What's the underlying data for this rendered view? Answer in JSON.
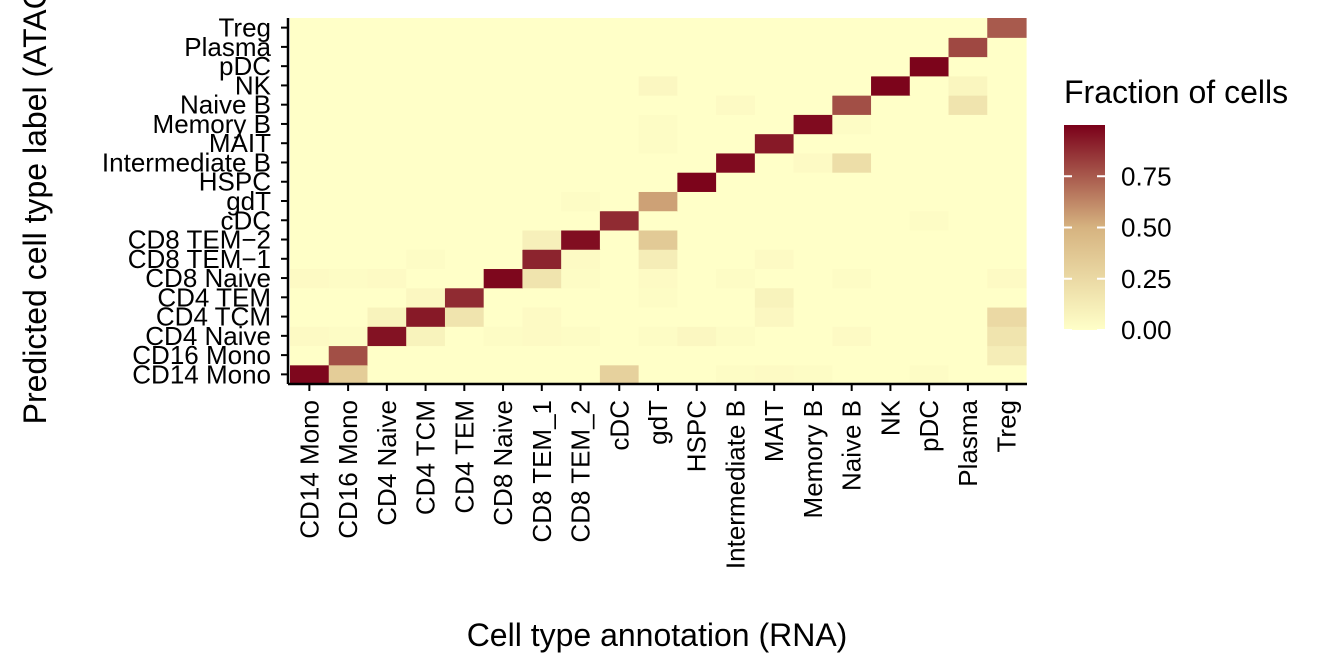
{
  "chart_data": {
    "type": "heatmap",
    "xlabel": "Cell type annotation (RNA)",
    "ylabel": "Predicted cell type label (ATAC)",
    "x_categories": [
      "CD14 Mono",
      "CD16 Mono",
      "CD4 Naive",
      "CD4 TCM",
      "CD4 TEM",
      "CD8 Naive",
      "CD8 TEM_1",
      "CD8 TEM_2",
      "cDC",
      "gdT",
      "HSPC",
      "Intermediate B",
      "MAIT",
      "Memory B",
      "Naive B",
      "NK",
      "pDC",
      "Plasma",
      "Treg"
    ],
    "y_categories": [
      "CD14 Mono",
      "CD16 Mono",
      "CD4 Naive",
      "CD4 TCM",
      "CD4 TEM",
      "CD8 Naive",
      "CD8 TEM−1",
      "CD8 TEM−2",
      "cDC",
      "gdT",
      "HSPC",
      "Intermediate B",
      "MAIT",
      "Memory B",
      "Naive B",
      "NK",
      "pDC",
      "Plasma",
      "Treg"
    ],
    "values": [
      [
        0.98,
        0.33,
        0.0,
        0.0,
        0.0,
        0.0,
        0.0,
        0.0,
        0.3,
        0.0,
        0.0,
        0.02,
        0.03,
        0.02,
        0.0,
        0.0,
        0.02,
        0.0,
        0.0
      ],
      [
        0.0,
        0.78,
        0.0,
        0.0,
        0.0,
        0.0,
        0.0,
        0.0,
        0.0,
        0.0,
        0.0,
        0.0,
        0.0,
        0.0,
        0.0,
        0.0,
        0.0,
        0.0,
        0.12
      ],
      [
        0.03,
        0.02,
        0.95,
        0.08,
        0.0,
        0.02,
        0.03,
        0.02,
        0.0,
        0.02,
        0.05,
        0.02,
        0.0,
        0.0,
        0.03,
        0.0,
        0.0,
        0.0,
        0.18
      ],
      [
        0.0,
        0.0,
        0.08,
        0.93,
        0.18,
        0.0,
        0.03,
        0.0,
        0.0,
        0.0,
        0.0,
        0.0,
        0.05,
        0.0,
        0.0,
        0.0,
        0.0,
        0.0,
        0.25
      ],
      [
        0.0,
        0.0,
        0.0,
        0.05,
        0.88,
        0.0,
        0.0,
        0.0,
        0.0,
        0.02,
        0.0,
        0.0,
        0.08,
        0.0,
        0.0,
        0.0,
        0.0,
        0.0,
        0.0
      ],
      [
        0.03,
        0.02,
        0.03,
        0.0,
        0.0,
        0.98,
        0.18,
        0.02,
        0.0,
        0.03,
        0.0,
        0.02,
        0.0,
        0.0,
        0.02,
        0.0,
        0.0,
        0.0,
        0.03
      ],
      [
        0.0,
        0.0,
        0.0,
        0.02,
        0.0,
        0.0,
        0.9,
        0.03,
        0.0,
        0.12,
        0.0,
        0.0,
        0.03,
        0.0,
        0.0,
        0.0,
        0.0,
        0.0,
        0.0
      ],
      [
        0.0,
        0.0,
        0.0,
        0.0,
        0.0,
        0.0,
        0.1,
        0.96,
        0.0,
        0.35,
        0.0,
        0.0,
        0.0,
        0.0,
        0.0,
        0.0,
        0.0,
        0.0,
        0.0
      ],
      [
        0.0,
        0.0,
        0.0,
        0.0,
        0.0,
        0.0,
        0.0,
        0.0,
        0.88,
        0.0,
        0.0,
        0.0,
        0.0,
        0.0,
        0.0,
        0.0,
        0.02,
        0.0,
        0.0
      ],
      [
        0.0,
        0.0,
        0.0,
        0.0,
        0.0,
        0.0,
        0.0,
        0.02,
        0.0,
        0.55,
        0.0,
        0.0,
        0.0,
        0.0,
        0.0,
        0.0,
        0.0,
        0.0,
        0.0
      ],
      [
        0.0,
        0.0,
        0.0,
        0.0,
        0.0,
        0.0,
        0.0,
        0.0,
        0.0,
        0.0,
        0.99,
        0.0,
        0.0,
        0.0,
        0.0,
        0.0,
        0.0,
        0.0,
        0.0
      ],
      [
        0.0,
        0.0,
        0.0,
        0.0,
        0.0,
        0.0,
        0.0,
        0.0,
        0.0,
        0.0,
        0.0,
        0.97,
        0.0,
        0.03,
        0.22,
        0.0,
        0.0,
        0.0,
        0.0
      ],
      [
        0.0,
        0.0,
        0.0,
        0.0,
        0.0,
        0.0,
        0.0,
        0.0,
        0.0,
        0.02,
        0.0,
        0.0,
        0.93,
        0.0,
        0.0,
        0.0,
        0.0,
        0.0,
        0.0
      ],
      [
        0.0,
        0.0,
        0.0,
        0.0,
        0.0,
        0.0,
        0.0,
        0.0,
        0.0,
        0.02,
        0.0,
        0.0,
        0.0,
        0.97,
        0.02,
        0.0,
        0.0,
        0.0,
        0.0
      ],
      [
        0.0,
        0.0,
        0.0,
        0.0,
        0.0,
        0.0,
        0.0,
        0.0,
        0.0,
        0.0,
        0.0,
        0.03,
        0.0,
        0.0,
        0.78,
        0.0,
        0.0,
        0.18,
        0.0
      ],
      [
        0.0,
        0.0,
        0.0,
        0.0,
        0.0,
        0.0,
        0.0,
        0.0,
        0.0,
        0.05,
        0.0,
        0.0,
        0.0,
        0.0,
        0.0,
        0.99,
        0.0,
        0.06,
        0.0
      ],
      [
        0.0,
        0.0,
        0.0,
        0.0,
        0.0,
        0.0,
        0.0,
        0.0,
        0.0,
        0.0,
        0.0,
        0.0,
        0.0,
        0.0,
        0.0,
        0.0,
        0.99,
        0.0,
        0.0
      ],
      [
        0.0,
        0.0,
        0.0,
        0.0,
        0.0,
        0.0,
        0.0,
        0.0,
        0.0,
        0.0,
        0.0,
        0.0,
        0.0,
        0.0,
        0.0,
        0.0,
        0.0,
        0.8,
        0.0
      ],
      [
        0.0,
        0.0,
        0.0,
        0.0,
        0.0,
        0.0,
        0.0,
        0.0,
        0.0,
        0.0,
        0.0,
        0.0,
        0.0,
        0.0,
        0.0,
        0.0,
        0.0,
        0.0,
        0.75
      ]
    ],
    "legend": {
      "title": "Fraction of cells",
      "ticks": [
        0,
        0.25,
        0.5,
        0.75
      ],
      "tick_labels": [
        "0.00",
        "0.25",
        "0.50",
        "0.75"
      ],
      "range": [
        0,
        1
      ],
      "low_color": "#FFFFC8",
      "mid_color": "#D6B380",
      "high_color": "#7A0019"
    }
  }
}
